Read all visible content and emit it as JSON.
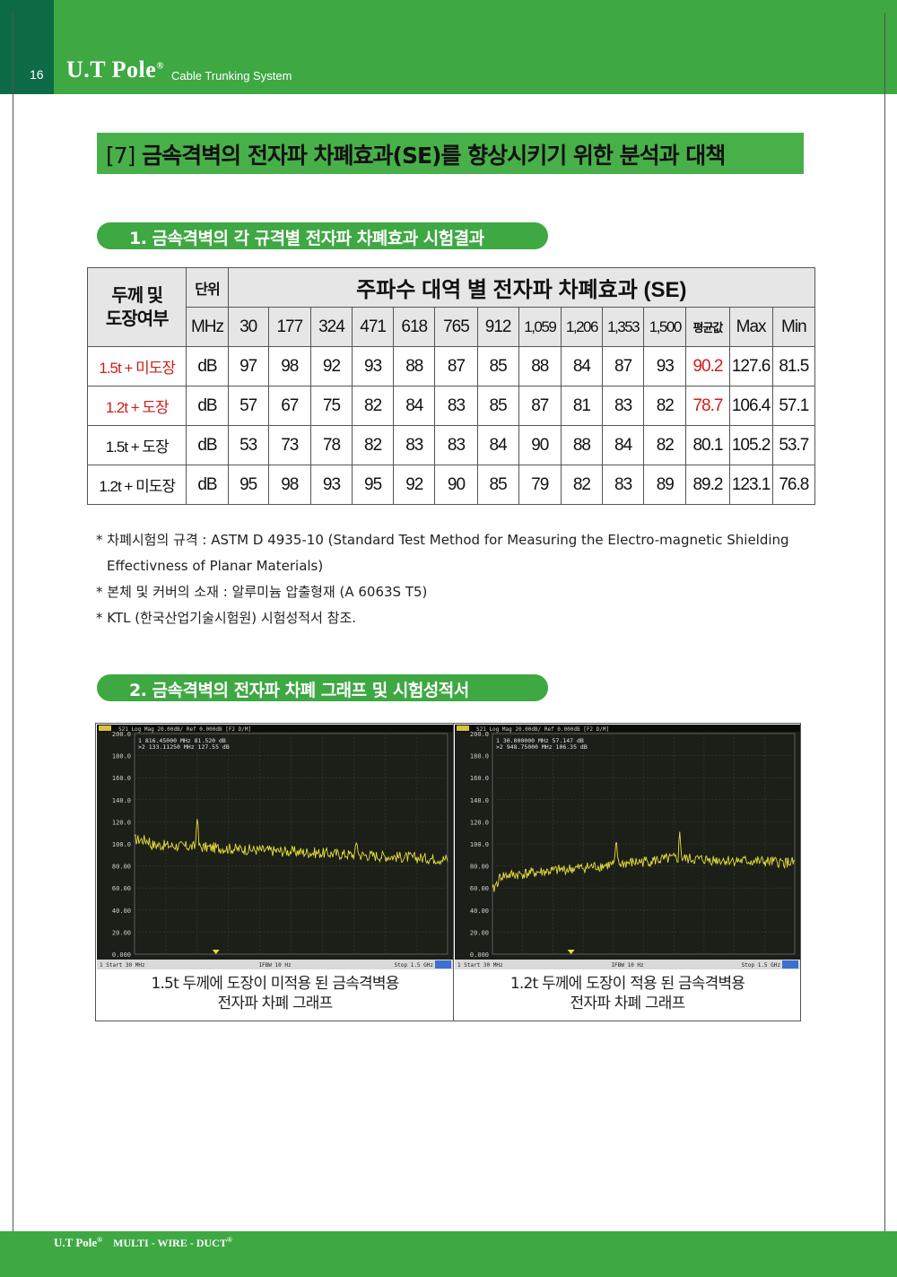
{
  "header": {
    "page_number": "16",
    "brand": "U.T Pole",
    "brand_mark": "®",
    "tagline": "Cable Trunking System"
  },
  "main_title": {
    "bracket": "[7]",
    "text": "금속격벽의 전자파 차폐효과(SE)를 향상시키기 위한 분석과 대책"
  },
  "section1": {
    "title": "1. 금속격벽의 각 규격별 전자파 차폐효과 시험결과"
  },
  "table": {
    "corner_label_line1": "두께 및",
    "corner_label_line2": "도장여부",
    "unit_header": "단위",
    "main_header": "주파수 대역 별 전자파 차폐효과 (SE)",
    "unit_row": "MHz",
    "columns": [
      "30",
      "177",
      "324",
      "471",
      "618",
      "765",
      "912",
      "1,059",
      "1,206",
      "1,353",
      "1,500",
      "평균값",
      "Max",
      "Min"
    ],
    "rows": [
      {
        "label": "1.5t + 미도장",
        "unit": "dB",
        "values": [
          "97",
          "98",
          "92",
          "93",
          "88",
          "87",
          "85",
          "88",
          "84",
          "87",
          "93"
        ],
        "avg": "90.2",
        "max": "127.6",
        "min": "81.5",
        "highlight": true
      },
      {
        "label": "1.2t + 도장",
        "unit": "dB",
        "values": [
          "57",
          "67",
          "75",
          "82",
          "84",
          "83",
          "85",
          "87",
          "81",
          "83",
          "82"
        ],
        "avg": "78.7",
        "max": "106.4",
        "min": "57.1",
        "highlight": true
      },
      {
        "label": "1.5t + 도장",
        "unit": "dB",
        "values": [
          "53",
          "73",
          "78",
          "82",
          "83",
          "83",
          "84",
          "90",
          "88",
          "84",
          "82"
        ],
        "avg": "80.1",
        "max": "105.2",
        "min": "53.7",
        "highlight": false
      },
      {
        "label": "1.2t + 미도장",
        "unit": "dB",
        "values": [
          "95",
          "98",
          "93",
          "95",
          "92",
          "90",
          "85",
          "79",
          "82",
          "83",
          "89"
        ],
        "avg": "89.2",
        "max": "123.1",
        "min": "76.8",
        "highlight": false
      }
    ],
    "highlight_color": "#d01c1c"
  },
  "notes": [
    "* 차폐시험의 규격 : ASTM D 4935-10 (Standard Test Method for Measuring the Electro-magnetic Shielding",
    "Effectivness of Planar Materials)",
    "* 본체 및 커버의 소재 : 알루미늄 압출형재 (A 6063S T5)",
    "* KTL (한국산업기술시험원) 시험성적서 참조."
  ],
  "section2": {
    "title": "2. 금속격벽의 전자파 차폐 그래프 및 시험성적서"
  },
  "graphs": [
    {
      "header": "S21 Log Mag 20.00dB/ Ref 0.000dB [F2 D/M]",
      "marker_line1": "1  816.45000 MHz  81.520 dB",
      "marker_line2": ">2  133.11250 MHz  127.55 dB",
      "y_ticks": [
        "200.0",
        "180.0",
        "160.0",
        "140.0",
        "120.0",
        "100.0",
        "80.00",
        "60.00",
        "40.00",
        "20.00",
        "0.000"
      ],
      "footer_left": "1  Start 30 MHz",
      "footer_mid": "IFBW 10 Hz",
      "footer_right": "Stop 1.5 GHz",
      "caption_line1": "1.5t 두께에 도장이 미적용 된 금속격벽용",
      "caption_line2": "전자파 차폐 그래프"
    },
    {
      "header": "S21 Log Mag 20.00dB/ Ref 0.000dB [F2 D/M]",
      "marker_line1": "1  30.000000 MHz  57.147 dB",
      "marker_line2": ">2  948.75000 MHz  106.35 dB",
      "y_ticks": [
        "200.0",
        "180.0",
        "160.0",
        "140.0",
        "120.0",
        "100.0",
        "80.00",
        "60.00",
        "40.00",
        "20.00",
        "0.000"
      ],
      "footer_left": "1  Start 30 MHz",
      "footer_mid": "IFBW 10 Hz",
      "footer_right": "Stop 1.5 GHz",
      "caption_line1": "1.2t 두께에 도장이 적용 된 금속격벽용",
      "caption_line2": "전자파 차폐 그래프"
    }
  ],
  "footer": {
    "brand": "U.T Pole",
    "mark": "®",
    "product": "MULTI - WIRE - DUCT",
    "product_mark": "®"
  },
  "colors": {
    "green": "#3ea843",
    "dark_green": "#0d6b45",
    "trace": "#e6dc3c",
    "screen": "#1b1f17"
  }
}
